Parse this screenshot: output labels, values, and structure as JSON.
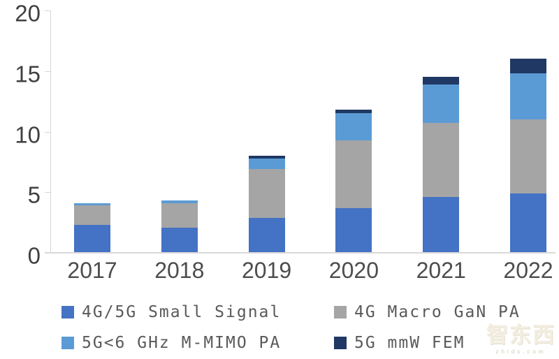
{
  "chart_data": {
    "type": "bar",
    "stacked": true,
    "title": "",
    "categories": [
      "2017",
      "2018",
      "2019",
      "2020",
      "2021",
      "2022"
    ],
    "series": [
      {
        "name": "4G/5G Small Signal",
        "color": "#4472C4",
        "values": [
          2.3,
          2.1,
          2.9,
          3.7,
          4.6,
          4.9
        ]
      },
      {
        "name": "4G Macro GaN PA",
        "color": "#A5A5A5",
        "values": [
          1.6,
          2.0,
          4.0,
          5.6,
          6.1,
          6.1
        ]
      },
      {
        "name": "5G<6 GHz M-MIMO PA",
        "color": "#5B9BD5",
        "values": [
          0.2,
          0.2,
          0.9,
          2.2,
          3.2,
          3.8
        ]
      },
      {
        "name": "5G mmW FEM",
        "color": "#203864",
        "values": [
          0,
          0,
          0.2,
          0.3,
          0.6,
          1.2
        ]
      }
    ],
    "totals": [
      4.1,
      4.3,
      8.0,
      11.8,
      14.5,
      16.0
    ],
    "xlabel": "",
    "ylabel": "",
    "ylim": [
      0,
      20
    ],
    "yticks": [
      0,
      5,
      10,
      15,
      20
    ],
    "grid": false,
    "legend_position": "bottom"
  },
  "colors": {
    "axis_line": "#D9D9D9",
    "y_tick_text": "#404040",
    "x_tick_text": "#4D4D4D",
    "legend_text": "#595959"
  },
  "watermark": {
    "text": "智东西",
    "subtext": "zhidx.com"
  }
}
